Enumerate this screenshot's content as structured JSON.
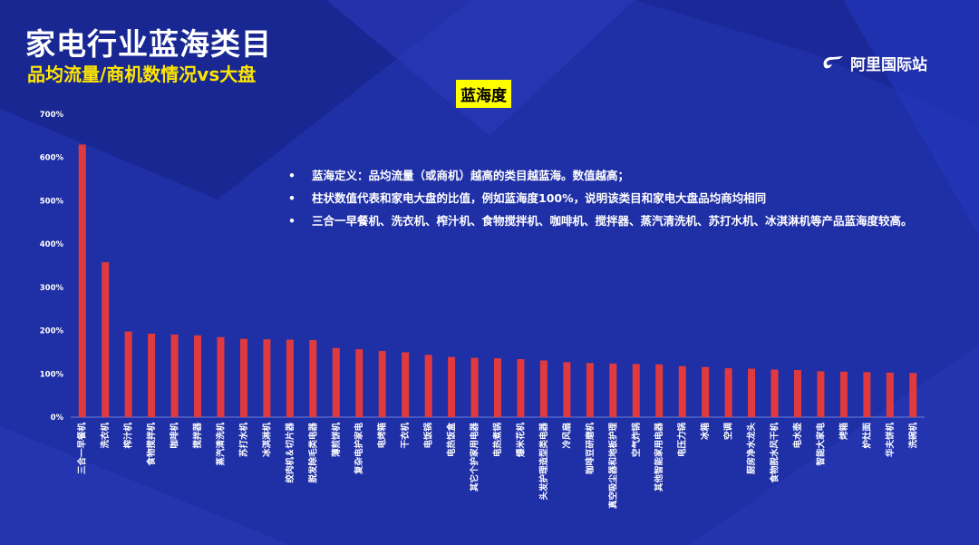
{
  "slide": {
    "title": "家电行业蓝海类目",
    "subtitle": "品均流量/商机数情况vs大盘",
    "logo_text": "阿里国际站",
    "logo_icon": "alibaba-logo-icon",
    "badge": "蓝海度",
    "notes": [
      "蓝海定义：品均流量（或商机）越高的类目越蓝海。数值越高；",
      "柱状数值代表和家电大盘的比值，例如蓝海度100%，说明该类目和家电大盘品均商均相同",
      "三合一早餐机、洗衣机、榨汁机、食物搅拌机、咖啡机、搅拌器、蒸汽清洗机、苏打水机、冰淇淋机等产品蓝海度较高。"
    ]
  },
  "colors": {
    "background": "#1f2fa6",
    "bar": "#e03a3e",
    "title": "#ffffff",
    "subtitle": "#ffe600",
    "badge_bg": "#ffff00"
  },
  "chart_data": {
    "type": "bar",
    "categories": [
      "三合一早餐机",
      "洗衣机",
      "榨汁机",
      "食物搅拌机",
      "咖啡机",
      "搅拌器",
      "蒸汽清洗机",
      "苏打水机",
      "冰淇淋机",
      "绞肉机＆切片器",
      "脱发除毛类电器",
      "薄煎饼机",
      "复杂电护家电",
      "电烤箱",
      "干衣机",
      "电饭锅",
      "电热饭盒",
      "其它个护家用电器",
      "电热煮锅",
      "爆米花机",
      "头发护理造型类电器",
      "冷风扇",
      "咖啡豆研磨机",
      "真空吸尘器和地板护理",
      "空气炸锅",
      "其他智能家用电器",
      "电压力锅",
      "冰箱",
      "空调",
      "厨房净水龙头",
      "食物脱水风干机",
      "电水壶",
      "智能大家电",
      "烤箱",
      "炉灶面",
      "华夫饼机",
      "洗碗机"
    ],
    "values": [
      630,
      358,
      198,
      193,
      191,
      189,
      185,
      181,
      180,
      179,
      178,
      160,
      157,
      153,
      150,
      144,
      139,
      137,
      136,
      134,
      131,
      127,
      125,
      124,
      123,
      122,
      118,
      116,
      113,
      112,
      110,
      109,
      106,
      105,
      104,
      103,
      102
    ],
    "unit": "%",
    "ylim": [
      0,
      700
    ],
    "yticks": [
      "0%",
      "100%",
      "200%",
      "300%",
      "400%",
      "500%",
      "600%",
      "700%"
    ],
    "ytick_values": [
      0,
      100,
      200,
      300,
      400,
      500,
      600,
      700
    ],
    "title": "",
    "xlabel": "",
    "ylabel": "",
    "grid": false,
    "legend": "none"
  }
}
